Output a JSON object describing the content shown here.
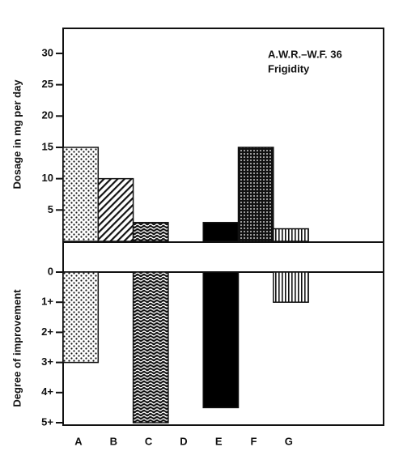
{
  "chart_data": [
    {
      "type": "bar",
      "ylabel": "Dosage in mg per day",
      "annotations": [
        "A.W.R.–W.F. 36",
        "Frigidity"
      ],
      "values": [
        15,
        10,
        3,
        null,
        3,
        15,
        2
      ],
      "ylim": [
        0,
        34
      ],
      "yticks": [
        5,
        10,
        15,
        20,
        25,
        30
      ]
    },
    {
      "type": "bar",
      "ylabel": "Degree of improvement",
      "y_reversed": true,
      "categories": [
        "A",
        "B",
        "C",
        "D",
        "E",
        "F",
        "G"
      ],
      "values": [
        3,
        null,
        5,
        null,
        4.5,
        null,
        1
      ],
      "ylim": [
        0,
        5
      ],
      "yticks": [
        0,
        {
          "value": 1,
          "label": "1+"
        },
        {
          "value": 2,
          "label": "2+"
        },
        {
          "value": 3,
          "label": "3+"
        },
        {
          "value": 4,
          "label": "4+"
        },
        {
          "value": 5,
          "label": "5+"
        }
      ]
    }
  ]
}
